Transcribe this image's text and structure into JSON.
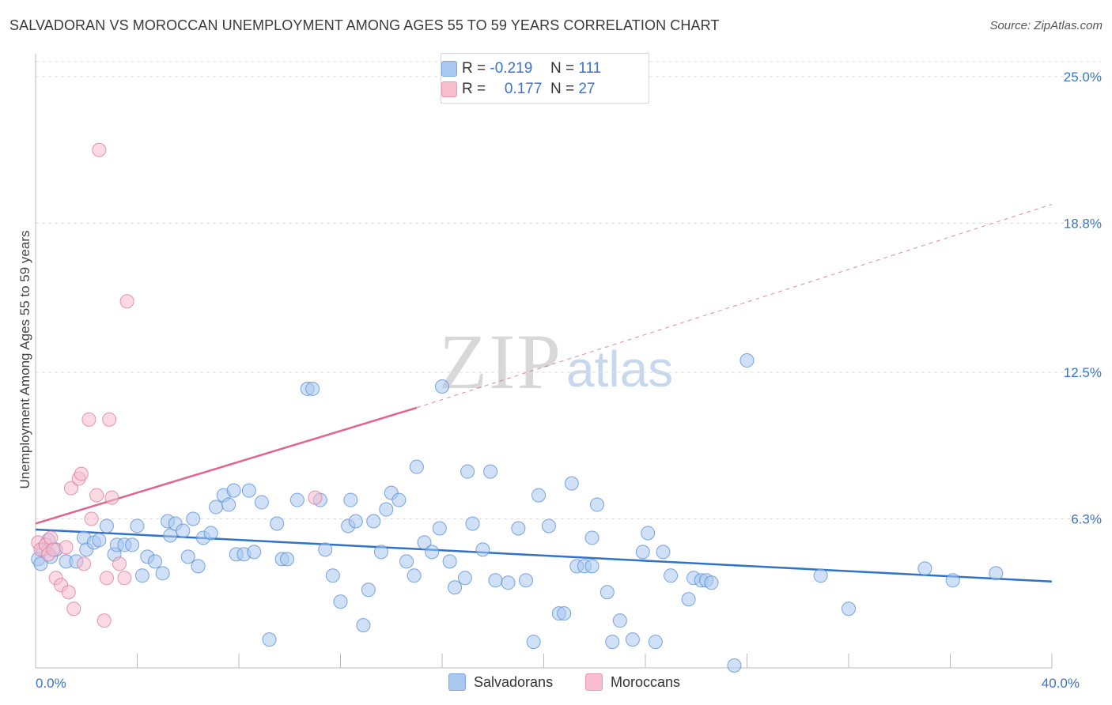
{
  "title": "SALVADORAN VS MOROCCAN UNEMPLOYMENT AMONG AGES 55 TO 59 YEARS CORRELATION CHART",
  "source": "Source: ZipAtlas.com",
  "watermark": {
    "zip": "ZIP",
    "atlas": "atlas"
  },
  "legend": {
    "rows": [
      {
        "r_label": "R =",
        "r_value": "-0.219",
        "n_label": "N =",
        "n_value": "111",
        "color": "#a9c8f0"
      },
      {
        "r_label": "R =",
        "r_value": "0.177",
        "n_label": "N =",
        "n_value": "27",
        "color": "#f7bccd"
      }
    ],
    "bottom": [
      {
        "name": "Salvadorans",
        "color": "#a9c8f0"
      },
      {
        "name": "Moroccans",
        "color": "#f7bccd"
      }
    ]
  },
  "chart_data": {
    "type": "scatter",
    "xlabel": "",
    "ylabel": "Unemployment Among Ages 55 to 59 years",
    "xlim": [
      0,
      40
    ],
    "ylim": [
      0,
      25
    ],
    "x_tick_labels": [
      {
        "value": 0,
        "label": "0.0%"
      },
      {
        "value": 40,
        "label": "40.0%"
      }
    ],
    "y_tick_labels": [
      {
        "value": 6.3,
        "label": "6.3%"
      },
      {
        "value": 12.5,
        "label": "12.5%"
      },
      {
        "value": 18.8,
        "label": "18.8%"
      },
      {
        "value": 25.0,
        "label": "25.0%"
      }
    ],
    "grid": true,
    "colors": {
      "blue_fill": "#a9c8f0",
      "blue_stroke": "#5b8fd6",
      "blue_line": "#2f72c9",
      "pink_fill": "#f7bccd",
      "pink_stroke": "#e07a9c",
      "pink_line": "#e0648f",
      "axis_label": "#3a74c9"
    },
    "series": [
      {
        "name": "Salvadorans",
        "points": [
          [
            0.1,
            4.6
          ],
          [
            0.2,
            4.4
          ],
          [
            0.3,
            5.0
          ],
          [
            0.5,
            5.4
          ],
          [
            0.6,
            4.7
          ],
          [
            0.8,
            5.0
          ],
          [
            1.2,
            4.5
          ],
          [
            1.6,
            4.5
          ],
          [
            1.9,
            5.5
          ],
          [
            2.0,
            5.0
          ],
          [
            2.3,
            5.3
          ],
          [
            2.5,
            5.4
          ],
          [
            2.8,
            6.0
          ],
          [
            3.1,
            4.8
          ],
          [
            3.2,
            5.2
          ],
          [
            3.5,
            5.2
          ],
          [
            3.8,
            5.2
          ],
          [
            4.0,
            6.0
          ],
          [
            4.2,
            3.9
          ],
          [
            4.4,
            4.7
          ],
          [
            4.7,
            4.5
          ],
          [
            5.0,
            4.0
          ],
          [
            5.2,
            6.2
          ],
          [
            5.3,
            5.6
          ],
          [
            5.5,
            6.1
          ],
          [
            5.8,
            5.8
          ],
          [
            6.0,
            4.7
          ],
          [
            6.2,
            6.3
          ],
          [
            6.4,
            4.3
          ],
          [
            6.6,
            5.5
          ],
          [
            6.9,
            5.7
          ],
          [
            7.1,
            6.8
          ],
          [
            7.4,
            7.3
          ],
          [
            7.6,
            6.9
          ],
          [
            7.8,
            7.5
          ],
          [
            7.9,
            4.8
          ],
          [
            8.2,
            4.8
          ],
          [
            8.4,
            7.5
          ],
          [
            8.6,
            4.9
          ],
          [
            8.9,
            7.0
          ],
          [
            9.2,
            1.2
          ],
          [
            9.5,
            6.1
          ],
          [
            9.7,
            4.6
          ],
          [
            9.9,
            4.6
          ],
          [
            10.3,
            7.1
          ],
          [
            10.7,
            11.8
          ],
          [
            10.9,
            11.8
          ],
          [
            11.2,
            7.1
          ],
          [
            11.4,
            5.0
          ],
          [
            11.7,
            3.9
          ],
          [
            12.0,
            2.8
          ],
          [
            12.3,
            6.0
          ],
          [
            12.4,
            7.1
          ],
          [
            12.6,
            6.2
          ],
          [
            12.9,
            1.8
          ],
          [
            13.1,
            3.3
          ],
          [
            13.3,
            6.2
          ],
          [
            13.6,
            4.9
          ],
          [
            13.8,
            6.7
          ],
          [
            14.0,
            7.4
          ],
          [
            14.3,
            7.1
          ],
          [
            14.6,
            4.5
          ],
          [
            14.9,
            3.9
          ],
          [
            15.0,
            8.5
          ],
          [
            15.3,
            5.3
          ],
          [
            15.6,
            4.9
          ],
          [
            15.9,
            5.9
          ],
          [
            16.0,
            11.9
          ],
          [
            16.3,
            4.5
          ],
          [
            16.5,
            3.4
          ],
          [
            16.9,
            3.8
          ],
          [
            17.0,
            8.3
          ],
          [
            17.2,
            6.1
          ],
          [
            17.6,
            5.0
          ],
          [
            17.9,
            8.3
          ],
          [
            18.1,
            3.7
          ],
          [
            18.6,
            3.6
          ],
          [
            19.0,
            5.9
          ],
          [
            19.3,
            3.7
          ],
          [
            19.6,
            1.1
          ],
          [
            19.8,
            7.3
          ],
          [
            20.2,
            6.0
          ],
          [
            20.6,
            2.3
          ],
          [
            20.8,
            2.3
          ],
          [
            21.1,
            7.8
          ],
          [
            21.3,
            4.3
          ],
          [
            21.6,
            4.3
          ],
          [
            21.9,
            4.3
          ],
          [
            21.9,
            5.5
          ],
          [
            22.1,
            6.9
          ],
          [
            22.5,
            3.2
          ],
          [
            22.7,
            1.1
          ],
          [
            23.0,
            2.0
          ],
          [
            23.5,
            1.2
          ],
          [
            23.9,
            4.9
          ],
          [
            24.1,
            5.7
          ],
          [
            24.4,
            1.1
          ],
          [
            24.7,
            4.9
          ],
          [
            25.0,
            3.9
          ],
          [
            25.7,
            2.9
          ],
          [
            25.9,
            3.8
          ],
          [
            26.2,
            3.7
          ],
          [
            26.4,
            3.7
          ],
          [
            26.6,
            3.6
          ],
          [
            27.5,
            0.1
          ],
          [
            28.0,
            13.0
          ],
          [
            30.9,
            3.9
          ],
          [
            32.0,
            2.5
          ],
          [
            35.0,
            4.2
          ],
          [
            36.1,
            3.7
          ],
          [
            37.8,
            4.0
          ]
        ],
        "trend": {
          "x": [
            0,
            40
          ],
          "y": [
            5.85,
            3.65
          ]
        }
      },
      {
        "name": "Moroccans",
        "points": [
          [
            0.1,
            5.3
          ],
          [
            0.2,
            5.0
          ],
          [
            0.4,
            5.2
          ],
          [
            0.5,
            4.8
          ],
          [
            0.6,
            5.5
          ],
          [
            0.7,
            5.0
          ],
          [
            0.8,
            3.8
          ],
          [
            1.0,
            3.5
          ],
          [
            1.2,
            5.1
          ],
          [
            1.3,
            3.2
          ],
          [
            1.4,
            7.6
          ],
          [
            1.5,
            2.5
          ],
          [
            1.7,
            8.0
          ],
          [
            1.8,
            8.2
          ],
          [
            1.9,
            4.4
          ],
          [
            2.1,
            10.5
          ],
          [
            2.2,
            6.3
          ],
          [
            2.4,
            7.3
          ],
          [
            2.5,
            21.9
          ],
          [
            2.7,
            2.0
          ],
          [
            2.8,
            3.8
          ],
          [
            2.9,
            10.5
          ],
          [
            3.0,
            7.2
          ],
          [
            3.3,
            4.4
          ],
          [
            3.5,
            3.8
          ],
          [
            3.6,
            15.5
          ],
          [
            11.0,
            7.2
          ]
        ],
        "trend": {
          "x": [
            0,
            15
          ],
          "y": [
            6.1,
            11.0
          ]
        },
        "trend_dashed": {
          "x": [
            15,
            40
          ],
          "y": [
            11.0,
            19.6
          ]
        }
      }
    ]
  }
}
